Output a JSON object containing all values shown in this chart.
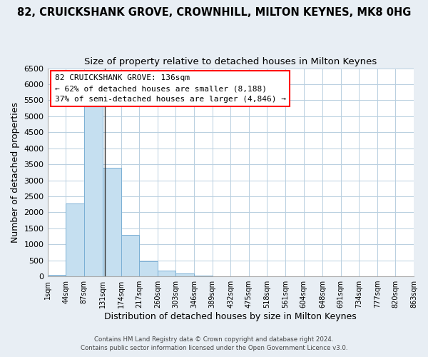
{
  "title": "82, CRUICKSHANK GROVE, CROWNHILL, MILTON KEYNES, MK8 0HG",
  "subtitle": "Size of property relative to detached houses in Milton Keynes",
  "xlabel": "Distribution of detached houses by size in Milton Keynes",
  "ylabel": "Number of detached properties",
  "bin_edges": [
    1,
    44,
    87,
    131,
    174,
    217,
    260,
    303,
    346,
    389,
    432,
    475,
    518,
    561,
    604,
    648,
    691,
    734,
    777,
    820,
    863
  ],
  "bar_heights": [
    50,
    2280,
    5450,
    3400,
    1300,
    480,
    190,
    80,
    30,
    8,
    3,
    2,
    0,
    0,
    0,
    0,
    0,
    0,
    0,
    0
  ],
  "bar_color": "#c5dff0",
  "bar_edgecolor": "#7aafd4",
  "ylim": [
    0,
    6500
  ],
  "yticks": [
    0,
    500,
    1000,
    1500,
    2000,
    2500,
    3000,
    3500,
    4000,
    4500,
    5000,
    5500,
    6000,
    6500
  ],
  "xtick_labels": [
    "1sqm",
    "44sqm",
    "87sqm",
    "131sqm",
    "174sqm",
    "217sqm",
    "260sqm",
    "303sqm",
    "346sqm",
    "389sqm",
    "432sqm",
    "475sqm",
    "518sqm",
    "561sqm",
    "604sqm",
    "648sqm",
    "691sqm",
    "734sqm",
    "777sqm",
    "820sqm",
    "863sqm"
  ],
  "xtick_positions": [
    1,
    44,
    87,
    131,
    174,
    217,
    260,
    303,
    346,
    389,
    432,
    475,
    518,
    561,
    604,
    648,
    691,
    734,
    777,
    820,
    863
  ],
  "property_line_x": 136,
  "annotation_title": "82 CRUICKSHANK GROVE: 136sqm",
  "annotation_line1": "← 62% of detached houses are smaller (8,188)",
  "annotation_line2": "37% of semi-detached houses are larger (4,846) →",
  "footer1": "Contains HM Land Registry data © Crown copyright and database right 2024.",
  "footer2": "Contains public sector information licensed under the Open Government Licence v3.0.",
  "background_color": "#e8eef4",
  "plot_background": "#ffffff",
  "grid_color": "#b8cfe0",
  "title_fontsize": 10.5,
  "subtitle_fontsize": 9.5
}
